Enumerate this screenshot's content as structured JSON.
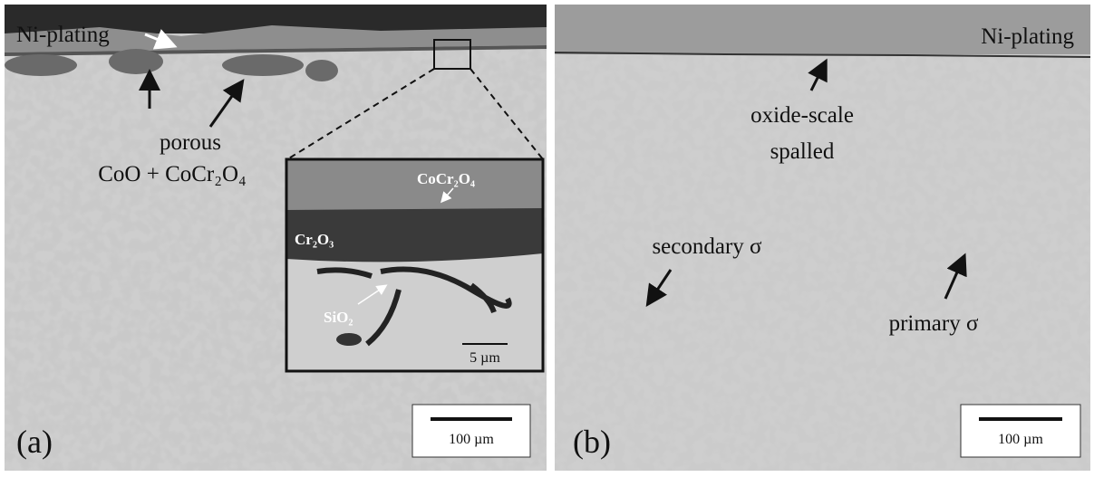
{
  "panels": [
    {
      "label": "(a)",
      "annotations": {
        "plating": "Ni-plating",
        "porous": "porous",
        "oxides": "CoO + CoCr₂O₄"
      },
      "inset": {
        "spinel": "CoCr₂O₄",
        "chromia": "Cr₂O₃",
        "silica": "SiO₂",
        "scale": "5 µm"
      },
      "scale_bar": "100 µm"
    },
    {
      "label": "(b)",
      "annotations": {
        "plating": "Ni-plating",
        "scale_line1": "oxide-scale",
        "scale_line2": "spalled",
        "secondary": "secondary σ",
        "primary": "primary σ"
      },
      "scale_bar": "100 µm"
    }
  ]
}
